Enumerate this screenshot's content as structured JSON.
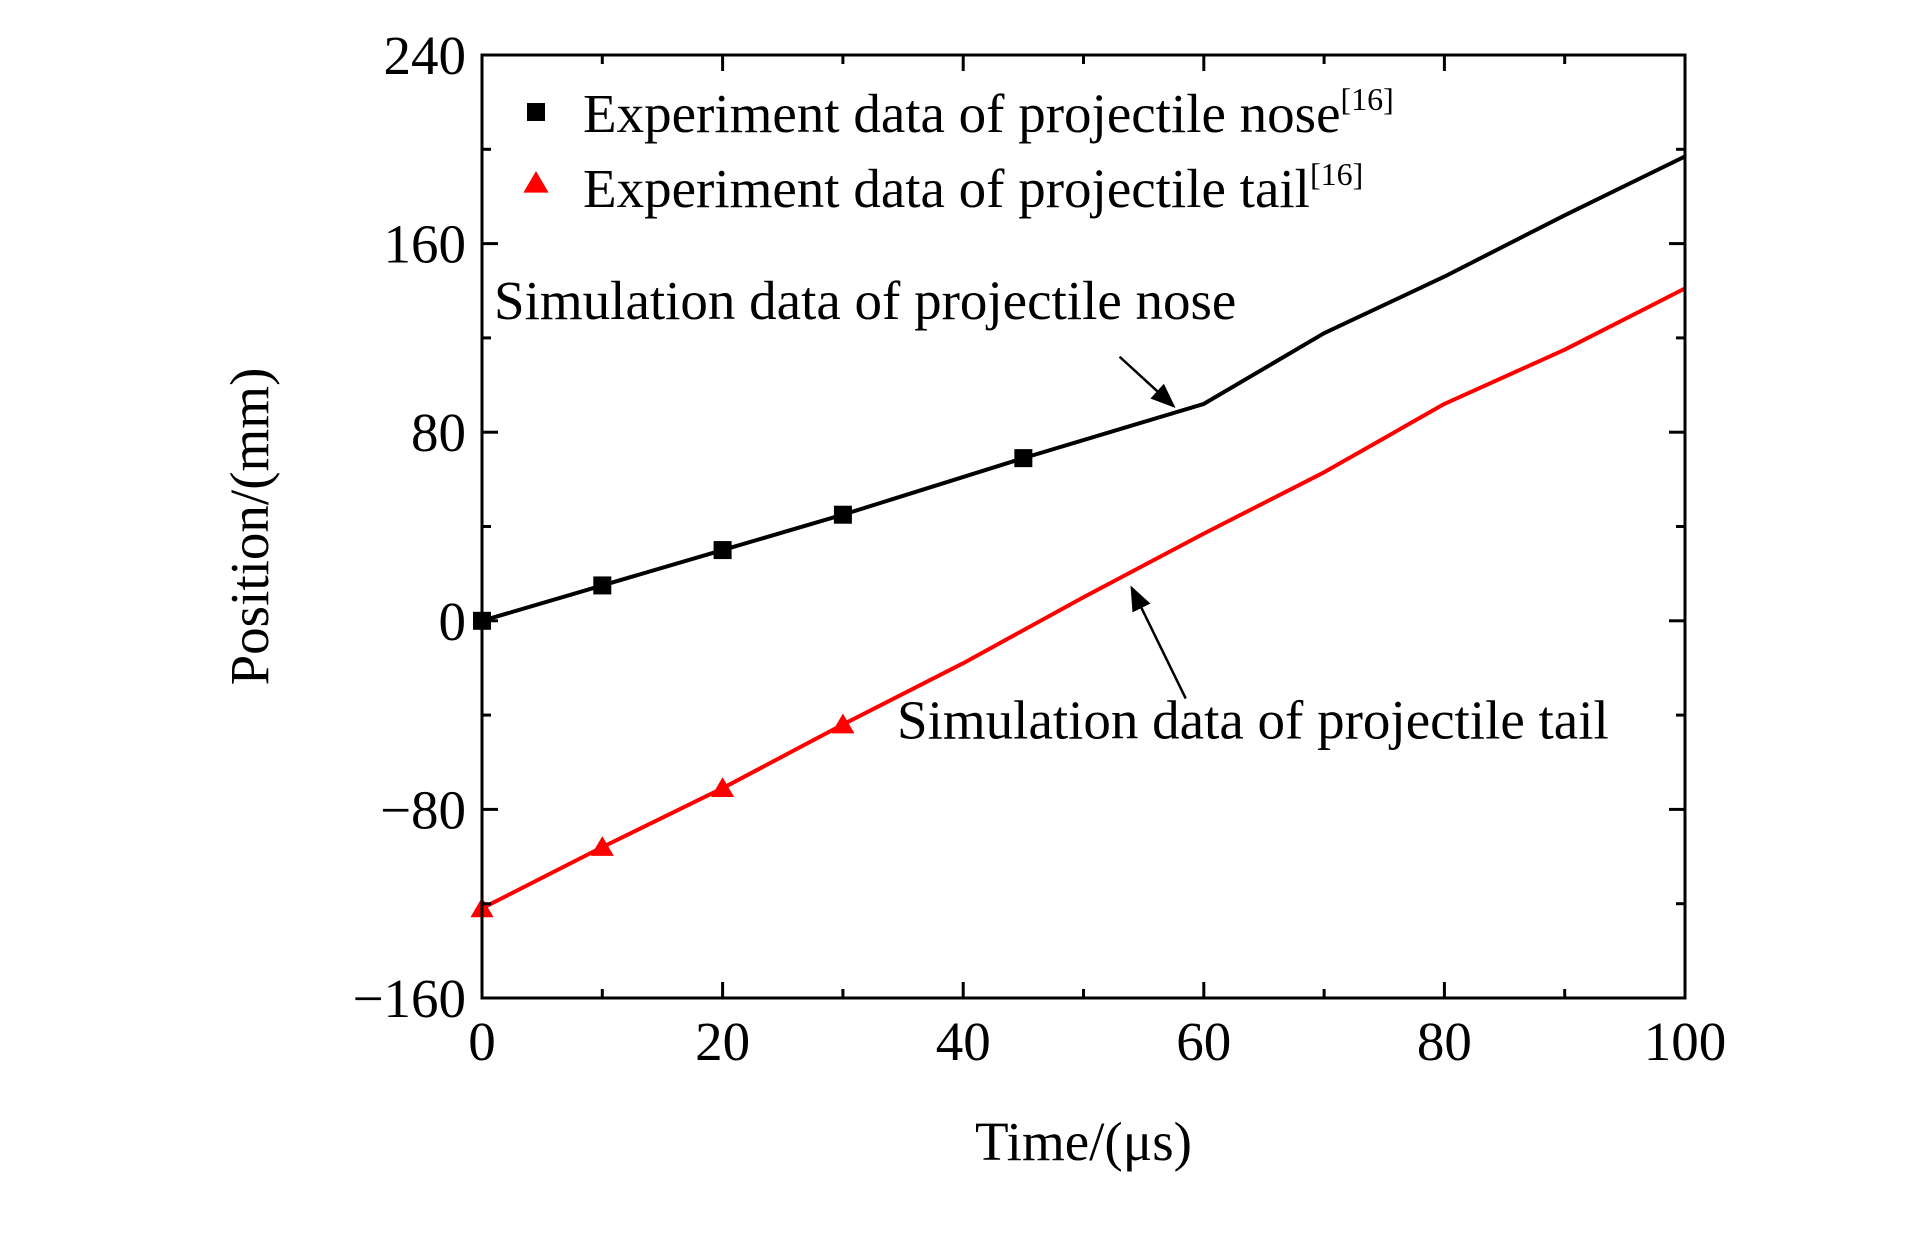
{
  "chart_data": {
    "type": "line",
    "title": "",
    "xlabel": "Time/(μs)",
    "ylabel": "Position/(mm)",
    "xlim": [
      0,
      100
    ],
    "ylim": [
      -160,
      240
    ],
    "xticks": [
      0,
      20,
      40,
      60,
      80,
      100
    ],
    "xtick_labels": [
      "0",
      "20",
      "40",
      "60",
      "80",
      "100"
    ],
    "yticks": [
      -160,
      -80,
      0,
      80,
      160,
      240
    ],
    "ytick_labels": [
      "−160",
      "−80",
      "0",
      "80",
      "160",
      "240"
    ],
    "grid": false,
    "legend_position": "top-left",
    "series": [
      {
        "name": "Simulation data of projectile nose",
        "kind": "line",
        "color": "#000000",
        "x": [
          0,
          10,
          20,
          30,
          45,
          60,
          70,
          80,
          90,
          100
        ],
        "y": [
          0,
          15,
          30,
          45,
          69,
          92,
          122,
          146,
          172,
          197
        ]
      },
      {
        "name": "Simulation data of projectile tail",
        "kind": "line",
        "color": "#ff0000",
        "x": [
          0,
          10,
          20,
          30,
          40,
          50,
          60,
          70,
          80,
          90,
          100
        ],
        "y": [
          -122,
          -96,
          -71,
          -44,
          -18,
          10,
          37,
          63,
          92,
          115,
          141
        ]
      },
      {
        "name": "Experiment data of  projectile nose",
        "citation": "[16]",
        "kind": "scatter",
        "marker": "square",
        "color": "#000000",
        "x": [
          0,
          10,
          20,
          30,
          45
        ],
        "y": [
          0,
          15,
          30,
          45,
          69
        ]
      },
      {
        "name": "Experiment data of  projectile tail",
        "citation": "[16]",
        "kind": "scatter",
        "marker": "triangle",
        "color": "#ff0000",
        "x": [
          0,
          10,
          20,
          30
        ],
        "y": [
          -122,
          -96,
          -71,
          -44
        ]
      }
    ],
    "annotations": [
      {
        "text": "Simulation data of projectile nose",
        "series": 0,
        "text_at": [
          1,
          128
        ],
        "arrow_from": [
          53,
          112
        ],
        "arrow_to": [
          57.5,
          91
        ]
      },
      {
        "text": "Simulation data of projectile tail",
        "series": 1,
        "text_at": [
          34.5,
          -50
        ],
        "arrow_from": [
          58.5,
          -33
        ],
        "arrow_to": [
          54,
          14
        ]
      }
    ]
  }
}
